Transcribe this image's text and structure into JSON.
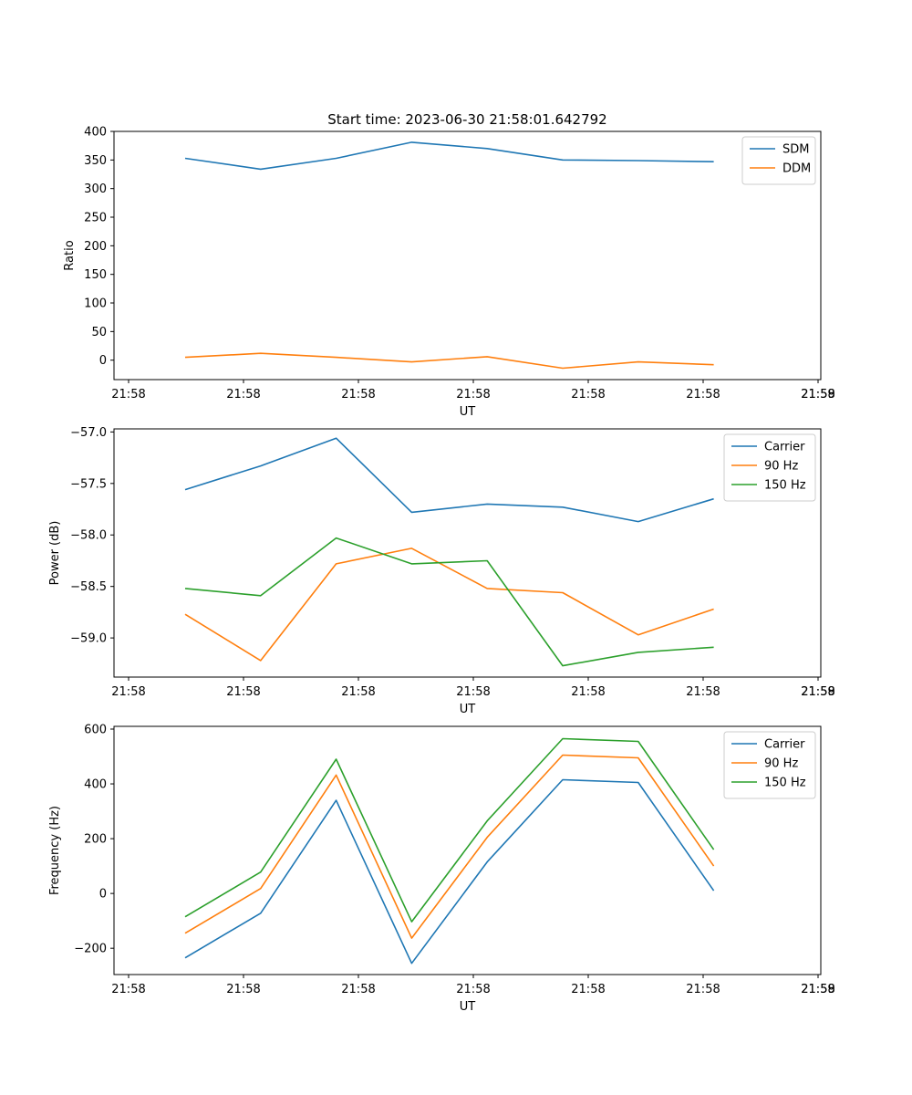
{
  "suptitle": "Start time: 2023-06-30 21:58:01.642792",
  "chart_data": [
    {
      "type": "line",
      "title": "Start time: 2023-06-30 21:58:01.642792",
      "xlabel": "UT",
      "ylabel": "Ratio",
      "x_tick_labels": [
        "21:58",
        "21:58",
        "21:58",
        "21:58",
        "21:58",
        "21:58",
        "21:58"
      ],
      "x_tick_labels_extra": "21:59",
      "y_ticks": [
        0,
        50,
        100,
        150,
        200,
        250,
        300,
        350,
        400
      ],
      "ylim": [
        -34,
        400
      ],
      "legend_position": "top-right",
      "grid": false,
      "series": [
        {
          "name": "SDM",
          "color": "#1f77b4",
          "values": [
            353,
            334,
            353,
            381,
            370,
            350,
            349,
            347
          ]
        },
        {
          "name": "DDM",
          "color": "#ff7f0e",
          "values": [
            5,
            12,
            5,
            -3,
            6,
            -14,
            -3,
            -8
          ]
        }
      ]
    },
    {
      "type": "line",
      "title": "",
      "xlabel": "UT",
      "ylabel": "Power (dB)",
      "x_tick_labels": [
        "21:58",
        "21:58",
        "21:58",
        "21:58",
        "21:58",
        "21:58",
        "21:58"
      ],
      "x_tick_labels_extra": "21:59",
      "y_ticks": [
        -59.0,
        -58.5,
        -58.0,
        -57.5,
        -57.0
      ],
      "ylim": [
        -59.38,
        -56.97
      ],
      "legend_position": "top-right",
      "grid": false,
      "series": [
        {
          "name": "Carrier",
          "color": "#1f77b4",
          "values": [
            -57.56,
            -57.33,
            -57.06,
            -57.78,
            -57.7,
            -57.73,
            -57.87,
            -57.65
          ]
        },
        {
          "name": "90 Hz",
          "color": "#ff7f0e",
          "values": [
            -58.77,
            -59.22,
            -58.28,
            -58.13,
            -58.52,
            -58.56,
            -58.97,
            -58.72
          ]
        },
        {
          "name": "150 Hz",
          "color": "#2ca02c",
          "values": [
            -58.52,
            -58.59,
            -58.03,
            -58.28,
            -58.25,
            -59.27,
            -59.14,
            -59.09
          ]
        }
      ]
    },
    {
      "type": "line",
      "title": "",
      "xlabel": "UT",
      "ylabel": "Frequency (Hz)",
      "x_tick_labels": [
        "21:58",
        "21:58",
        "21:58",
        "21:58",
        "21:58",
        "21:58",
        "21:58"
      ],
      "x_tick_labels_extra": "21:59",
      "y_ticks": [
        -200,
        0,
        200,
        400,
        600
      ],
      "ylim": [
        -296,
        610
      ],
      "legend_position": "top-right",
      "grid": false,
      "series": [
        {
          "name": "Carrier",
          "color": "#1f77b4",
          "values": [
            -235,
            -72,
            340,
            -255,
            115,
            415,
            405,
            10
          ]
        },
        {
          "name": "90 Hz",
          "color": "#ff7f0e",
          "values": [
            -145,
            18,
            432,
            -163,
            205,
            505,
            495,
            100
          ]
        },
        {
          "name": "150 Hz",
          "color": "#2ca02c",
          "values": [
            -85,
            78,
            490,
            -103,
            265,
            565,
            555,
            160
          ]
        }
      ]
    }
  ]
}
